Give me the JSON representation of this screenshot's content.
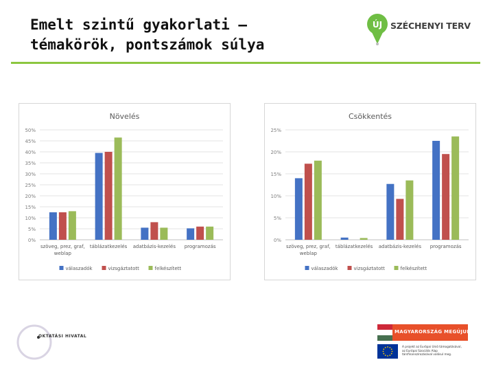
{
  "slide": {
    "title_line1": "Emelt szintű gyakorlati –",
    "title_line2": "témakörök, pontszámok súlya"
  },
  "logos": {
    "top_right_badge": "ÚJ",
    "top_right_text": "SZÉCHENYI TERV",
    "bottom_left_text": "OKTATÁSI HIVATAL",
    "banner_text": "MAGYARORSZÁG MEGÚJUL",
    "eu_lines": [
      "A projekt az Európai Unió támogatásával,",
      "az Európai Szociális Alap",
      "társfinanszírozásával valósul meg."
    ]
  },
  "colors": {
    "valaszadok": "#4472c4",
    "vizsgaztatott": "#c0504d",
    "felkeszitett": "#9bbb59",
    "accent_rule": "#8cc63f"
  },
  "chart_data": [
    {
      "type": "bar",
      "title": "Növelés",
      "categories": [
        "szöveg, prez, graf, weblap",
        "táblázatkezelés",
        "adatbázis-kezelés",
        "programozás"
      ],
      "series": [
        {
          "name": "válaszadók",
          "values": [
            12.5,
            39.5,
            5.5,
            5.2
          ]
        },
        {
          "name": "vizsgáztatott",
          "values": [
            12.5,
            40,
            8,
            6
          ]
        },
        {
          "name": "felkészített",
          "values": [
            13,
            46.5,
            5.5,
            6
          ]
        }
      ],
      "ylim": [
        0,
        50
      ],
      "yticks": [
        0,
        5,
        10,
        15,
        20,
        25,
        30,
        35,
        40,
        45,
        50
      ],
      "ytick_labels": [
        "0%",
        "5%",
        "10%",
        "15%",
        "20%",
        "25%",
        "30%",
        "35%",
        "40%",
        "45%",
        "50%"
      ],
      "grid": true,
      "legend": "bottom"
    },
    {
      "type": "bar",
      "title": "Csökkentés",
      "categories": [
        "szöveg, prez, graf, weblap",
        "táblázatkezelés",
        "adatbázis-kezelés",
        "programozás"
      ],
      "series": [
        {
          "name": "válaszadók",
          "values": [
            14,
            0.5,
            12.7,
            22.5
          ]
        },
        {
          "name": "vizsgáztatott",
          "values": [
            17.3,
            0,
            9.3,
            19.5
          ]
        },
        {
          "name": "felkészített",
          "values": [
            18,
            0.4,
            13.5,
            23.5
          ]
        }
      ],
      "ylim": [
        0,
        25
      ],
      "yticks": [
        0,
        5,
        10,
        15,
        20,
        25
      ],
      "ytick_labels": [
        "0%",
        "5%",
        "10%",
        "15%",
        "20%",
        "25%"
      ],
      "grid": true,
      "legend": "bottom"
    }
  ]
}
